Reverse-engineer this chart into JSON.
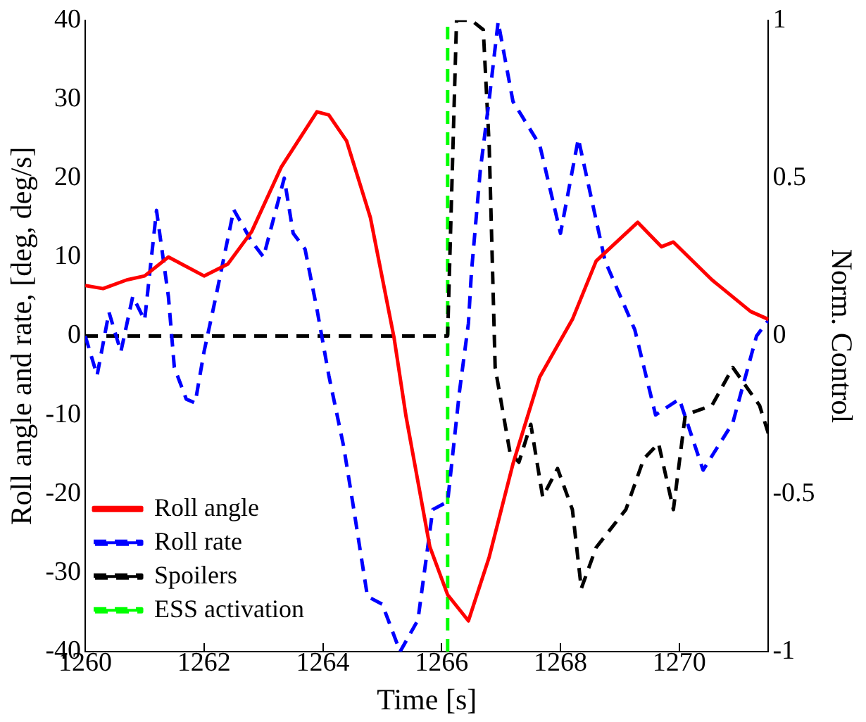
{
  "chart_data": {
    "type": "line",
    "xlabel": "Time [s]",
    "ylabel": "Roll angle and rate, [deg, deg/s]",
    "y2label": "Norm. Control",
    "xlim": [
      1260,
      1271.5
    ],
    "xticks": [
      1260,
      1262,
      1264,
      1266,
      1268,
      1270
    ],
    "ylim": [
      -40,
      40
    ],
    "yticks": [
      -40,
      -30,
      -20,
      -10,
      0,
      10,
      20,
      30,
      40
    ],
    "y2lim": [
      -1,
      1
    ],
    "y2ticks": [
      -1,
      -0.5,
      0,
      0.5,
      1
    ],
    "grid": false,
    "legend": "bottom left",
    "marker": "none",
    "series": [
      {
        "name": "Roll angle",
        "color": "#ff0000",
        "line_style": "solid",
        "x": [
          1260,
          1260.3,
          1260.7,
          1261,
          1261.4,
          1262,
          1262.4,
          1262.8,
          1263.3,
          1263.9,
          1264.1,
          1264.4,
          1264.8,
          1265.2,
          1265.4,
          1265.8,
          1266.1,
          1266.45,
          1266.8,
          1267.2,
          1267.65,
          1268.2,
          1268.6,
          1269.3,
          1269.7,
          1269.9,
          1270.55,
          1271.2,
          1271.5
        ],
        "values": [
          6.4,
          6,
          7.1,
          7.6,
          10,
          7.6,
          9.1,
          13.2,
          21.4,
          28.4,
          28,
          24.7,
          15,
          -0.3,
          -10.2,
          -26.7,
          -32.8,
          -36.1,
          -28,
          -16.2,
          -5.2,
          2.1,
          9.5,
          14.4,
          11.3,
          11.9,
          7.1,
          3.1,
          2.1
        ]
      },
      {
        "name": "Roll rate",
        "color": "#0000ff",
        "line_style": "dashed",
        "x": [
          1260,
          1260.2,
          1260.4,
          1260.6,
          1260.8,
          1261,
          1261.2,
          1261.4,
          1261.5,
          1261.7,
          1261.85,
          1262,
          1262.2,
          1262.5,
          1262.8,
          1263,
          1263.35,
          1263.5,
          1263.7,
          1263.9,
          1264.1,
          1264.35,
          1264.5,
          1264.75,
          1265,
          1265.3,
          1265.6,
          1265.85,
          1266.1,
          1266.3,
          1266.45,
          1266.5,
          1266.65,
          1266.8,
          1266.95,
          1267.2,
          1267.65,
          1268,
          1268.3,
          1268.75,
          1269.25,
          1269.6,
          1270,
          1270.4,
          1270.9,
          1271.3,
          1271.5
        ],
        "values": [
          0,
          -5,
          3,
          -2,
          5,
          2,
          15.9,
          5,
          -4,
          -8,
          -8.5,
          -2,
          5,
          16,
          12,
          10,
          20,
          13,
          11,
          3.4,
          -5,
          -14,
          -21,
          -33,
          -34,
          -40,
          -36,
          -22,
          -21,
          -7,
          1.6,
          8,
          21,
          30,
          39.8,
          29.7,
          24.2,
          13,
          25,
          9.5,
          0.8,
          -10,
          -8,
          -17,
          -11,
          0,
          2
        ]
      },
      {
        "name": "Spoilers",
        "color": "#000000",
        "line_style": "dashed",
        "axis": "y2",
        "x": [
          1260,
          1266.1,
          1266.25,
          1266.5,
          1266.7,
          1266.8,
          1266.9,
          1267.15,
          1267.3,
          1267.5,
          1267.7,
          1267.95,
          1268.2,
          1268.35,
          1268.6,
          1269.1,
          1269.4,
          1269.65,
          1269.9,
          1270.1,
          1270.55,
          1270.9,
          1271.35,
          1271.5
        ],
        "values": [
          0,
          0,
          1,
          1,
          0.97,
          0.6,
          -0.1,
          -0.37,
          -0.4,
          -0.28,
          -0.51,
          -0.42,
          -0.55,
          -0.8,
          -0.67,
          -0.55,
          -0.39,
          -0.34,
          -0.55,
          -0.25,
          -0.22,
          -0.1,
          -0.22,
          -0.31
        ]
      },
      {
        "name": "ESS activation",
        "color": "#00ff00",
        "line_style": "dashed",
        "x": [
          1266.1,
          1266.1
        ],
        "values": [
          -40,
          40
        ]
      }
    ]
  }
}
